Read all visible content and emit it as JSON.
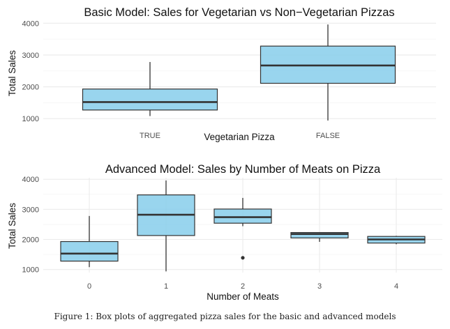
{
  "caption": "Figure 1: Box plots of aggregated pizza sales for the basic and advanced models",
  "colors": {
    "box_fill": "#87CEEB",
    "box_stroke": "#333333",
    "median": "#333333",
    "grid": "#ebebeb",
    "text": "#222222",
    "tick_text": "#4d4d4d"
  },
  "chart_data": [
    {
      "type": "box",
      "title": "Basic Model: Sales for Vegetarian vs Non−Vegetarian Pizzas",
      "xlabel": "Vegetarian Pizza",
      "ylabel": "Total Sales",
      "ylim": [
        850,
        4050
      ],
      "yticks": [
        1000,
        2000,
        3000,
        4000
      ],
      "grid": true,
      "categories": [
        "TRUE",
        "FALSE"
      ],
      "boxes": [
        {
          "category": "TRUE",
          "min": 1080,
          "q1": 1270,
          "median": 1520,
          "q3": 1930,
          "max": 2780,
          "outliers": []
        },
        {
          "category": "FALSE",
          "min": 940,
          "q1": 2110,
          "median": 2670,
          "q3": 3280,
          "max": 3960,
          "outliers": []
        }
      ]
    },
    {
      "type": "box",
      "title": "Advanced Model: Sales by Number of Meats on Pizza",
      "xlabel": "Number of Meats",
      "ylabel": "Total Sales",
      "ylim": [
        900,
        4050
      ],
      "yticks": [
        1000,
        2000,
        3000,
        4000
      ],
      "grid": true,
      "categories": [
        "0",
        "1",
        "2",
        "3",
        "4"
      ],
      "boxes": [
        {
          "category": "0",
          "min": 1080,
          "q1": 1280,
          "median": 1530,
          "q3": 1930,
          "max": 2780,
          "outliers": []
        },
        {
          "category": "1",
          "min": 940,
          "q1": 2130,
          "median": 2820,
          "q3": 3480,
          "max": 3960,
          "outliers": []
        },
        {
          "category": "2",
          "min": 2440,
          "q1": 2540,
          "median": 2740,
          "q3": 3010,
          "max": 3380,
          "outliers": [
            1390
          ]
        },
        {
          "category": "3",
          "min": 1920,
          "q1": 2050,
          "median": 2180,
          "q3": 2230,
          "max": 2240,
          "outliers": []
        },
        {
          "category": "4",
          "min": 1840,
          "q1": 1880,
          "median": 2000,
          "q3": 2100,
          "max": 2120,
          "outliers": []
        }
      ]
    }
  ]
}
